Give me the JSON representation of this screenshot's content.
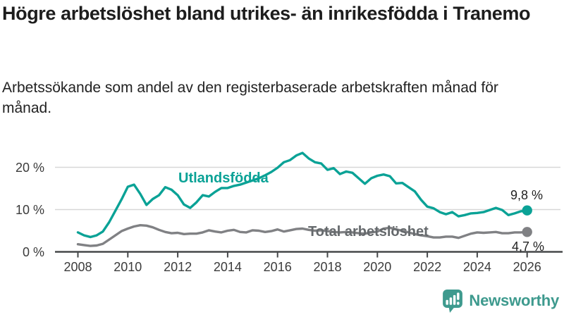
{
  "header": {
    "title": "Högre arbetslöshet bland utrikes- än inrikesfödda i Tranemo",
    "subtitle": "Arbetssökande som andel av den registerbaserade arbetskraften månad för månad."
  },
  "chart_data": {
    "type": "line",
    "title": "Högre arbetslöshet bland utrikes- än inrikesfödda i Tranemo",
    "subtitle": "Arbetssökande som andel av den registerbaserade arbetskraften månad för månad.",
    "x_unit": "year",
    "x_start": 2008,
    "x_step": 0.25,
    "x_range": [
      2008,
      2026
    ],
    "ylim": [
      0,
      24
    ],
    "grid": "horizontal-only",
    "legend_position": "inline-labels-on-lines",
    "yticks": [
      {
        "value": 0,
        "label": "0 %"
      },
      {
        "value": 10,
        "label": "10 %"
      },
      {
        "value": 20,
        "label": "20 %"
      }
    ],
    "xticks": [
      {
        "value": 2008,
        "label": "2008"
      },
      {
        "value": 2010,
        "label": "2010"
      },
      {
        "value": 2012,
        "label": "2012"
      },
      {
        "value": 2014,
        "label": "2014"
      },
      {
        "value": 2016,
        "label": "2016"
      },
      {
        "value": 2018,
        "label": "2018"
      },
      {
        "value": 2020,
        "label": "2020"
      },
      {
        "value": 2022,
        "label": "2022"
      },
      {
        "value": 2024,
        "label": "2024"
      },
      {
        "value": 2026,
        "label": "2026"
      }
    ],
    "series": [
      {
        "name": "Utlandsfödda",
        "color": "#0aa296",
        "end_value": 9.8,
        "end_value_label": "9,8 %",
        "values": [
          4.6,
          3.9,
          3.5,
          3.9,
          4.8,
          7.0,
          9.7,
          12.4,
          15.4,
          15.9,
          13.7,
          11.1,
          12.5,
          13.4,
          15.3,
          14.7,
          13.4,
          11.2,
          10.4,
          11.7,
          13.4,
          13.1,
          14.2,
          15.1,
          15.1,
          15.6,
          15.9,
          16.4,
          16.9,
          17.4,
          18.1,
          18.9,
          19.9,
          21.2,
          21.7,
          22.8,
          23.4,
          22.1,
          21.2,
          20.9,
          19.4,
          19.8,
          18.4,
          19.0,
          18.7,
          17.4,
          16.1,
          17.4,
          18.0,
          18.3,
          17.9,
          16.2,
          16.3,
          15.3,
          14.3,
          12.3,
          10.7,
          10.3,
          9.4,
          8.9,
          9.4,
          8.4,
          8.7,
          9.1,
          9.2,
          9.4,
          9.9,
          10.4,
          9.9,
          8.7,
          9.1,
          9.6,
          9.8
        ]
      },
      {
        "name": "Total arbetslöshet",
        "color": "#808184",
        "end_value": 4.7,
        "end_value_label": "4,7 %",
        "values": [
          1.8,
          1.6,
          1.4,
          1.5,
          1.9,
          2.9,
          3.9,
          4.9,
          5.5,
          6.0,
          6.3,
          6.2,
          5.8,
          5.2,
          4.7,
          4.4,
          4.5,
          4.2,
          4.3,
          4.3,
          4.6,
          5.1,
          4.8,
          4.6,
          5.0,
          5.2,
          4.7,
          4.6,
          5.1,
          5.0,
          4.7,
          4.9,
          5.3,
          4.8,
          5.1,
          5.4,
          5.5,
          5.2,
          5.0,
          5.1,
          4.9,
          4.7,
          4.6,
          4.7,
          4.6,
          4.4,
          4.3,
          4.6,
          4.8,
          5.5,
          5.7,
          5.3,
          5.0,
          4.6,
          4.2,
          3.9,
          3.7,
          3.4,
          3.4,
          3.6,
          3.6,
          3.3,
          3.8,
          4.3,
          4.6,
          4.5,
          4.6,
          4.7,
          4.4,
          4.4,
          4.6,
          4.6,
          4.7
        ]
      }
    ]
  },
  "footer": {
    "brand_name": "Newsworthy",
    "brand_color": "#3e9a8e",
    "brand_icon": "bar-chart-speech-bubble-icon"
  }
}
